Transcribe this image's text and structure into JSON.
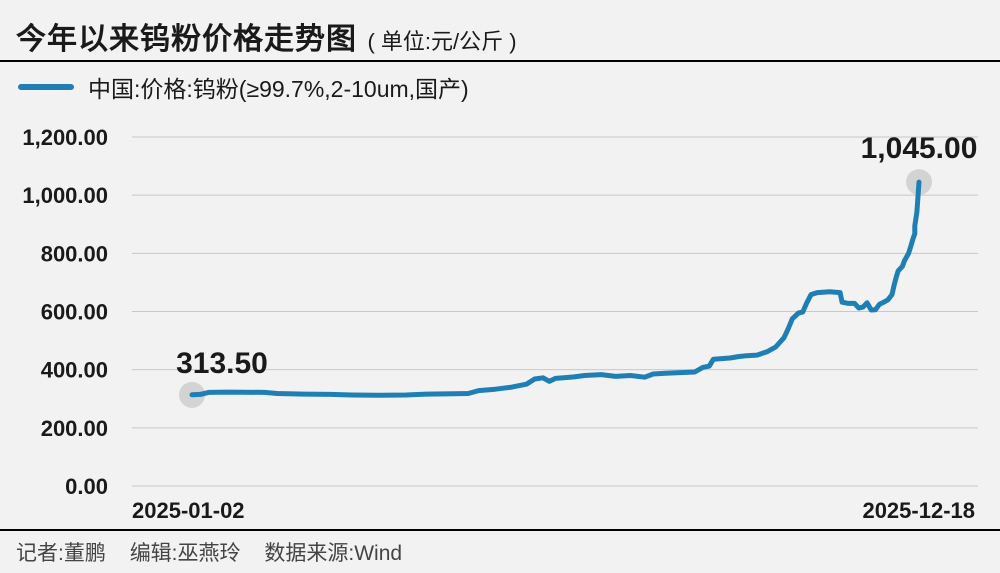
{
  "header": {
    "title": "今年以来钨粉价格走势图",
    "unit": "( 单位:元/公斤 )"
  },
  "legend": {
    "label": "中国:价格:钨粉(≥99.7%,2-10um,国产)"
  },
  "credits": {
    "reporter": "记者:董鹏",
    "editor": "编辑:巫燕玲",
    "source": "数据来源:Wind"
  },
  "colors": {
    "line": "#1f7fb5",
    "grid": "#c8c8c8",
    "marker": "#d3d3d3",
    "background": "#f2f2f2"
  },
  "chart_data": {
    "type": "line",
    "series": [
      {
        "name": "中国:价格:钨粉(≥99.7%,2-10um,国产)",
        "points": [
          [
            "2025-01-02",
            313.5
          ],
          [
            "2025-01-06",
            315
          ],
          [
            "2025-01-10",
            322
          ],
          [
            "2025-01-20",
            323
          ],
          [
            "2025-02-06",
            322
          ],
          [
            "2025-02-12",
            318
          ],
          [
            "2025-02-25",
            316
          ],
          [
            "2025-03-10",
            315
          ],
          [
            "2025-03-20",
            313
          ],
          [
            "2025-04-01",
            312
          ],
          [
            "2025-04-15",
            313
          ],
          [
            "2025-04-25",
            316
          ],
          [
            "2025-05-08",
            317
          ],
          [
            "2025-05-15",
            318
          ],
          [
            "2025-05-20",
            328
          ],
          [
            "2025-05-28",
            333
          ],
          [
            "2025-06-05",
            340
          ],
          [
            "2025-06-12",
            350
          ],
          [
            "2025-06-16",
            368
          ],
          [
            "2025-06-20",
            372
          ],
          [
            "2025-06-23",
            360
          ],
          [
            "2025-06-26",
            370
          ],
          [
            "2025-06-30",
            372
          ],
          [
            "2025-07-05",
            375
          ],
          [
            "2025-07-10",
            380
          ],
          [
            "2025-07-18",
            383
          ],
          [
            "2025-07-25",
            377
          ],
          [
            "2025-08-01",
            380
          ],
          [
            "2025-08-08",
            374
          ],
          [
            "2025-08-12",
            385
          ],
          [
            "2025-08-18",
            388
          ],
          [
            "2025-08-25",
            390
          ],
          [
            "2025-09-01",
            392
          ],
          [
            "2025-09-05",
            408
          ],
          [
            "2025-09-08",
            412
          ],
          [
            "2025-09-10",
            436
          ],
          [
            "2025-09-18",
            440
          ],
          [
            "2025-09-22",
            445
          ],
          [
            "2025-09-26",
            448
          ],
          [
            "2025-10-01",
            450
          ],
          [
            "2025-10-06",
            462
          ],
          [
            "2025-10-10",
            478
          ],
          [
            "2025-10-14",
            510
          ],
          [
            "2025-10-16",
            540
          ],
          [
            "2025-10-18",
            575
          ],
          [
            "2025-10-21",
            595
          ],
          [
            "2025-10-23",
            598
          ],
          [
            "2025-10-25",
            630
          ],
          [
            "2025-10-27",
            658
          ],
          [
            "2025-10-30",
            665
          ],
          [
            "2025-11-05",
            668
          ],
          [
            "2025-11-10",
            665
          ],
          [
            "2025-11-11",
            632
          ],
          [
            "2025-11-14",
            628
          ],
          [
            "2025-11-17",
            628
          ],
          [
            "2025-11-19",
            612
          ],
          [
            "2025-11-21",
            615
          ],
          [
            "2025-11-23",
            630
          ],
          [
            "2025-11-25",
            605
          ],
          [
            "2025-11-27",
            606
          ],
          [
            "2025-11-29",
            625
          ],
          [
            "2025-12-01",
            632
          ],
          [
            "2025-12-03",
            640
          ],
          [
            "2025-12-05",
            658
          ],
          [
            "2025-12-06",
            690
          ],
          [
            "2025-12-07",
            718
          ],
          [
            "2025-12-08",
            740
          ],
          [
            "2025-12-10",
            755
          ],
          [
            "2025-12-11",
            775
          ],
          [
            "2025-12-13",
            800
          ],
          [
            "2025-12-14",
            823
          ],
          [
            "2025-12-15",
            848
          ],
          [
            "2025-12-16",
            868
          ],
          [
            "2025-12-16",
            895
          ],
          [
            "2025-12-17",
            942
          ],
          [
            "2025-12-18",
            1045
          ]
        ]
      }
    ],
    "x_range": [
      "2025-01-02",
      "2025-12-18"
    ],
    "x_tick_labels": [
      "2025-01-02",
      "2025-12-18"
    ],
    "y_ticks": [
      0,
      200,
      400,
      600,
      800,
      1000,
      1200
    ],
    "y_tick_labels": [
      "0.00",
      "200.00",
      "400.00",
      "600.00",
      "800.00",
      "1,000.00",
      "1,200.00"
    ],
    "ylim": [
      0,
      1200
    ],
    "annotations": [
      {
        "date": "2025-01-02",
        "value": 313.5,
        "label": "313.50"
      },
      {
        "date": "2025-12-18",
        "value": 1045,
        "label": "1,045.00"
      }
    ],
    "grid": true,
    "legend_position": "top-left"
  }
}
